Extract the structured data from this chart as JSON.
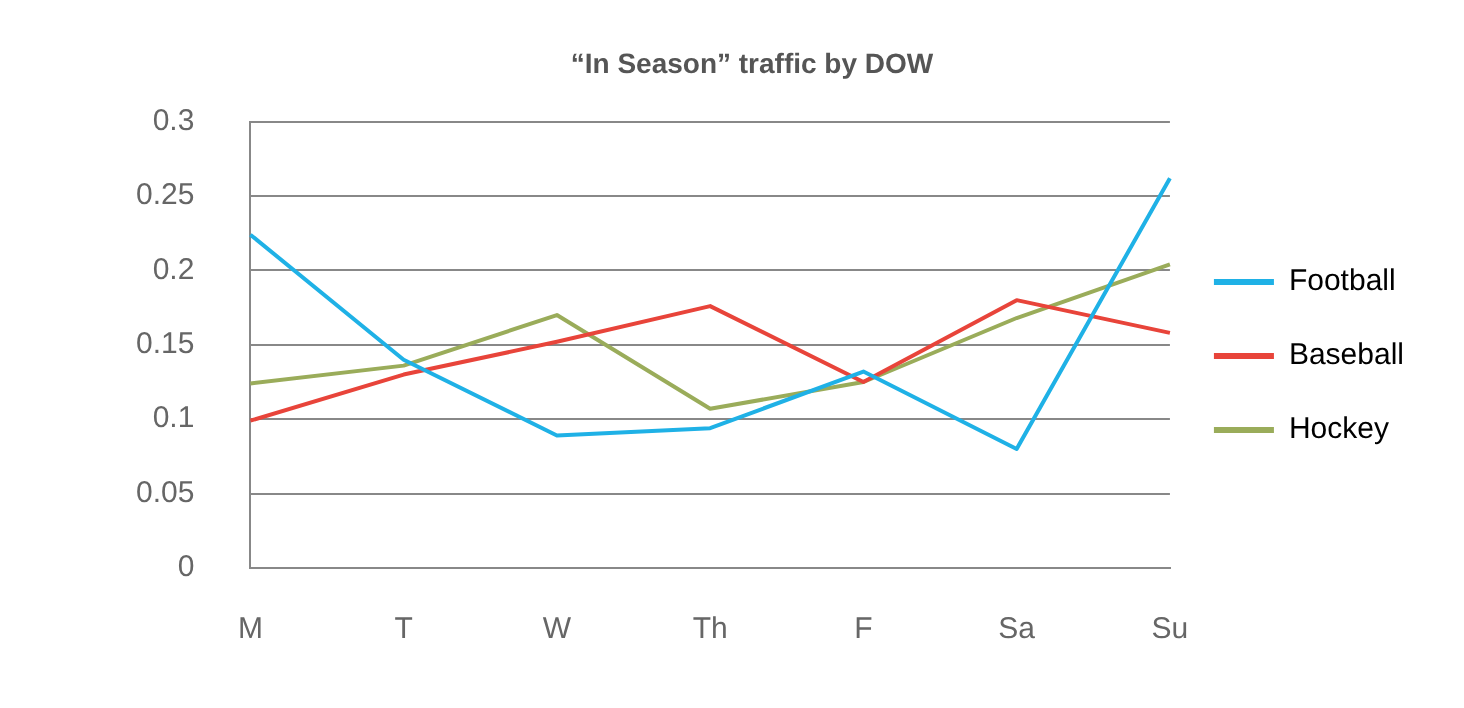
{
  "chart_data": {
    "type": "line",
    "title": "“In Season” traffic by DOW",
    "categories": [
      "M",
      "T",
      "W",
      "Th",
      "F",
      "Sa",
      "Su"
    ],
    "series": [
      {
        "name": "Football",
        "color": "#1fb1e6",
        "values": [
          0.224,
          0.14,
          0.089,
          0.094,
          0.132,
          0.08,
          0.262
        ]
      },
      {
        "name": "Baseball",
        "color": "#e8443a",
        "values": [
          0.099,
          0.13,
          0.152,
          0.176,
          0.125,
          0.18,
          0.158
        ]
      },
      {
        "name": "Hockey",
        "color": "#9aac5a",
        "values": [
          0.124,
          0.136,
          0.17,
          0.107,
          0.125,
          0.168,
          0.204
        ]
      }
    ],
    "ylim": [
      0,
      0.3
    ],
    "yticks": [
      0,
      0.05,
      0.1,
      0.15,
      0.2,
      0.25,
      0.3
    ],
    "grid": "y",
    "legend": "right",
    "marker": "none",
    "line_style": "solid"
  }
}
